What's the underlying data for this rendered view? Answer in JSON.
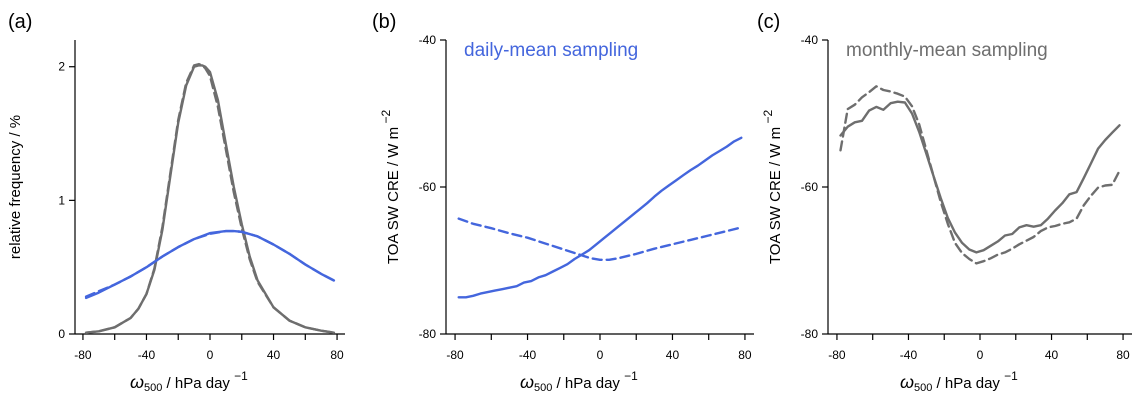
{
  "colors": {
    "blue": "#4466dd",
    "gray": "#6e6e6e"
  },
  "chart_data": [
    {
      "type": "line",
      "panel_label": "(a)",
      "annotation": "",
      "xlabel": {
        "symbol": "ω",
        "subscript": "500",
        "unit": "/ hPa day",
        "exponent": "−1"
      },
      "ylabel": {
        "text": "relative frequency / %",
        "exponent": ""
      },
      "xlim": [
        -85,
        85
      ],
      "ylim": [
        0,
        2.2
      ],
      "xticks": [
        -80,
        -60,
        -40,
        -20,
        0,
        20,
        40,
        60,
        80
      ],
      "xtick_labels": [
        "-80",
        "",
        "-40",
        "",
        "0",
        "",
        "40",
        "",
        "80"
      ],
      "yticks": [
        0,
        1,
        2
      ],
      "ytick_labels": [
        "0",
        "1",
        "2"
      ],
      "series": [
        {
          "color": "#6e6e6e",
          "dash": "solid",
          "x": [
            -78,
            -70,
            -60,
            -50,
            -45,
            -40,
            -35,
            -30,
            -25,
            -20,
            -15,
            -10,
            -7,
            -5,
            -3,
            0,
            5,
            10,
            15,
            20,
            25,
            30,
            40,
            50,
            60,
            70,
            78
          ],
          "y": [
            0.01,
            0.02,
            0.05,
            0.12,
            0.19,
            0.3,
            0.48,
            0.78,
            1.18,
            1.58,
            1.86,
            2.0,
            2.01,
            2.01,
            2.0,
            1.96,
            1.75,
            1.42,
            1.1,
            0.82,
            0.58,
            0.4,
            0.2,
            0.1,
            0.05,
            0.025,
            0.01
          ]
        },
        {
          "color": "#6e6e6e",
          "dash": "dashed",
          "x": [
            -78,
            -70,
            -60,
            -50,
            -45,
            -40,
            -35,
            -30,
            -25,
            -20,
            -15,
            -10,
            -7,
            -5,
            -3,
            0,
            5,
            10,
            15,
            20,
            25,
            30,
            40,
            50,
            60,
            70,
            78
          ],
          "y": [
            0.01,
            0.02,
            0.05,
            0.12,
            0.19,
            0.3,
            0.49,
            0.8,
            1.2,
            1.6,
            1.88,
            2.01,
            2.02,
            2.01,
            1.99,
            1.93,
            1.7,
            1.38,
            1.06,
            0.79,
            0.56,
            0.39,
            0.2,
            0.1,
            0.05,
            0.025,
            0.01
          ]
        },
        {
          "color": "#4466dd",
          "dash": "solid",
          "x": [
            -78,
            -70,
            -60,
            -50,
            -40,
            -30,
            -20,
            -10,
            0,
            10,
            15,
            20,
            30,
            40,
            50,
            60,
            70,
            78
          ],
          "y": [
            0.27,
            0.31,
            0.37,
            0.43,
            0.5,
            0.58,
            0.65,
            0.71,
            0.755,
            0.77,
            0.77,
            0.765,
            0.73,
            0.67,
            0.6,
            0.52,
            0.45,
            0.4
          ]
        },
        {
          "color": "#4466dd",
          "dash": "dashed",
          "x": [
            -78,
            -70,
            -60,
            -50,
            -40,
            -30,
            -20,
            -10,
            0,
            10,
            15,
            20,
            30,
            40,
            50,
            60,
            70,
            78
          ],
          "y": [
            0.28,
            0.32,
            0.37,
            0.43,
            0.5,
            0.58,
            0.65,
            0.71,
            0.75,
            0.77,
            0.77,
            0.765,
            0.73,
            0.67,
            0.6,
            0.52,
            0.45,
            0.4
          ]
        }
      ]
    },
    {
      "type": "line",
      "panel_label": "(b)",
      "annotation": "daily-mean sampling",
      "annotation_color": "#4466dd",
      "xlabel": {
        "symbol": "ω",
        "subscript": "500",
        "unit": "/ hPa day",
        "exponent": "−1"
      },
      "ylabel": {
        "text": "TOA SW CRE / W m",
        "exponent": "−2"
      },
      "xlim": [
        -85,
        85
      ],
      "ylim": [
        -80,
        -40
      ],
      "xticks": [
        -80,
        -60,
        -40,
        -20,
        0,
        20,
        40,
        60,
        80
      ],
      "xtick_labels": [
        "-80",
        "",
        "-40",
        "",
        "0",
        "",
        "40",
        "",
        "80"
      ],
      "yticks": [
        -80,
        -60,
        -40
      ],
      "ytick_labels": [
        "-80",
        "-60",
        "-40"
      ],
      "series": [
        {
          "color": "#4466dd",
          "dash": "solid",
          "x": [
            -78,
            -74,
            -70,
            -66,
            -62,
            -58,
            -54,
            -50,
            -46,
            -42,
            -38,
            -34,
            -30,
            -26,
            -22,
            -18,
            -14,
            -10,
            -6,
            -2,
            2,
            6,
            10,
            14,
            18,
            22,
            26,
            30,
            34,
            38,
            42,
            46,
            50,
            54,
            58,
            62,
            66,
            70,
            74,
            78
          ],
          "y": [
            -75,
            -75,
            -74.8,
            -74.5,
            -74.3,
            -74.1,
            -73.9,
            -73.7,
            -73.5,
            -73,
            -72.8,
            -72.3,
            -72,
            -71.5,
            -71,
            -70.5,
            -69.8,
            -69.2,
            -68.6,
            -67.8,
            -67,
            -66.2,
            -65.4,
            -64.6,
            -63.8,
            -63,
            -62.2,
            -61.3,
            -60.5,
            -59.8,
            -59.1,
            -58.4,
            -57.7,
            -57.1,
            -56.4,
            -55.7,
            -55.1,
            -54.5,
            -53.8,
            -53.3
          ]
        },
        {
          "color": "#4466dd",
          "dash": "dashed",
          "x": [
            -78,
            -70,
            -60,
            -50,
            -40,
            -30,
            -20,
            -10,
            -5,
            0,
            5,
            10,
            20,
            30,
            40,
            50,
            60,
            70,
            78
          ],
          "y": [
            -64.3,
            -65,
            -65.6,
            -66.3,
            -66.9,
            -67.7,
            -68.5,
            -69.3,
            -69.7,
            -69.9,
            -69.9,
            -69.7,
            -69.1,
            -68.4,
            -67.8,
            -67.2,
            -66.6,
            -66,
            -65.5
          ]
        }
      ]
    },
    {
      "type": "line",
      "panel_label": "(c)",
      "annotation": "monthly-mean sampling",
      "annotation_color": "#6e6e6e",
      "xlabel": {
        "symbol": "ω",
        "subscript": "500",
        "unit": "/ hPa day",
        "exponent": "−1"
      },
      "ylabel": {
        "text": "TOA SW CRE / W m",
        "exponent": "−2"
      },
      "xlim": [
        -85,
        85
      ],
      "ylim": [
        -80,
        -40
      ],
      "xticks": [
        -80,
        -60,
        -40,
        -20,
        0,
        20,
        40,
        60,
        80
      ],
      "xtick_labels": [
        "-80",
        "",
        "-40",
        "",
        "0",
        "",
        "40",
        "",
        "80"
      ],
      "yticks": [
        -80,
        -60,
        -40
      ],
      "ytick_labels": [
        "-80",
        "-60",
        "-40"
      ],
      "series": [
        {
          "color": "#6e6e6e",
          "dash": "solid",
          "x": [
            -78,
            -74,
            -70,
            -66,
            -62,
            -58,
            -54,
            -50,
            -46,
            -42,
            -38,
            -34,
            -30,
            -26,
            -22,
            -18,
            -14,
            -10,
            -6,
            -2,
            2,
            6,
            10,
            14,
            18,
            22,
            26,
            30,
            34,
            38,
            42,
            46,
            50,
            54,
            58,
            62,
            66,
            70,
            74,
            78
          ],
          "y": [
            -53,
            -51.8,
            -51.2,
            -51,
            -49.6,
            -49.1,
            -49.5,
            -48.6,
            -48.4,
            -48.5,
            -50,
            -52.5,
            -55.5,
            -58.5,
            -61.5,
            -64.2,
            -66.2,
            -67.6,
            -68.5,
            -68.9,
            -68.6,
            -68,
            -67.4,
            -66.6,
            -66.4,
            -65.5,
            -65.2,
            -65.4,
            -65.2,
            -64.3,
            -63.2,
            -62.2,
            -61,
            -60.7,
            -58.8,
            -56.8,
            -54.8,
            -53.6,
            -52.6,
            -51.6
          ]
        },
        {
          "color": "#6e6e6e",
          "dash": "dashed",
          "x": [
            -78,
            -74,
            -70,
            -66,
            -62,
            -58,
            -54,
            -50,
            -46,
            -42,
            -38,
            -34,
            -30,
            -26,
            -22,
            -18,
            -14,
            -10,
            -6,
            -2,
            2,
            6,
            10,
            14,
            18,
            22,
            26,
            30,
            34,
            38,
            42,
            46,
            50,
            54,
            58,
            62,
            66,
            70,
            74,
            78
          ],
          "y": [
            -55,
            -49.4,
            -48.8,
            -47.8,
            -47.1,
            -46.3,
            -46.8,
            -47,
            -47.3,
            -47.7,
            -49,
            -51.5,
            -55,
            -58.5,
            -62,
            -65,
            -67.6,
            -69,
            -69.8,
            -70.4,
            -70.1,
            -69.7,
            -69.2,
            -68.9,
            -68.4,
            -67.8,
            -67.3,
            -66.8,
            -66,
            -65.5,
            -65.3,
            -65,
            -64.8,
            -64.3,
            -62.5,
            -61.2,
            -60.1,
            -59.8,
            -59.7,
            -57.8
          ]
        }
      ]
    }
  ]
}
